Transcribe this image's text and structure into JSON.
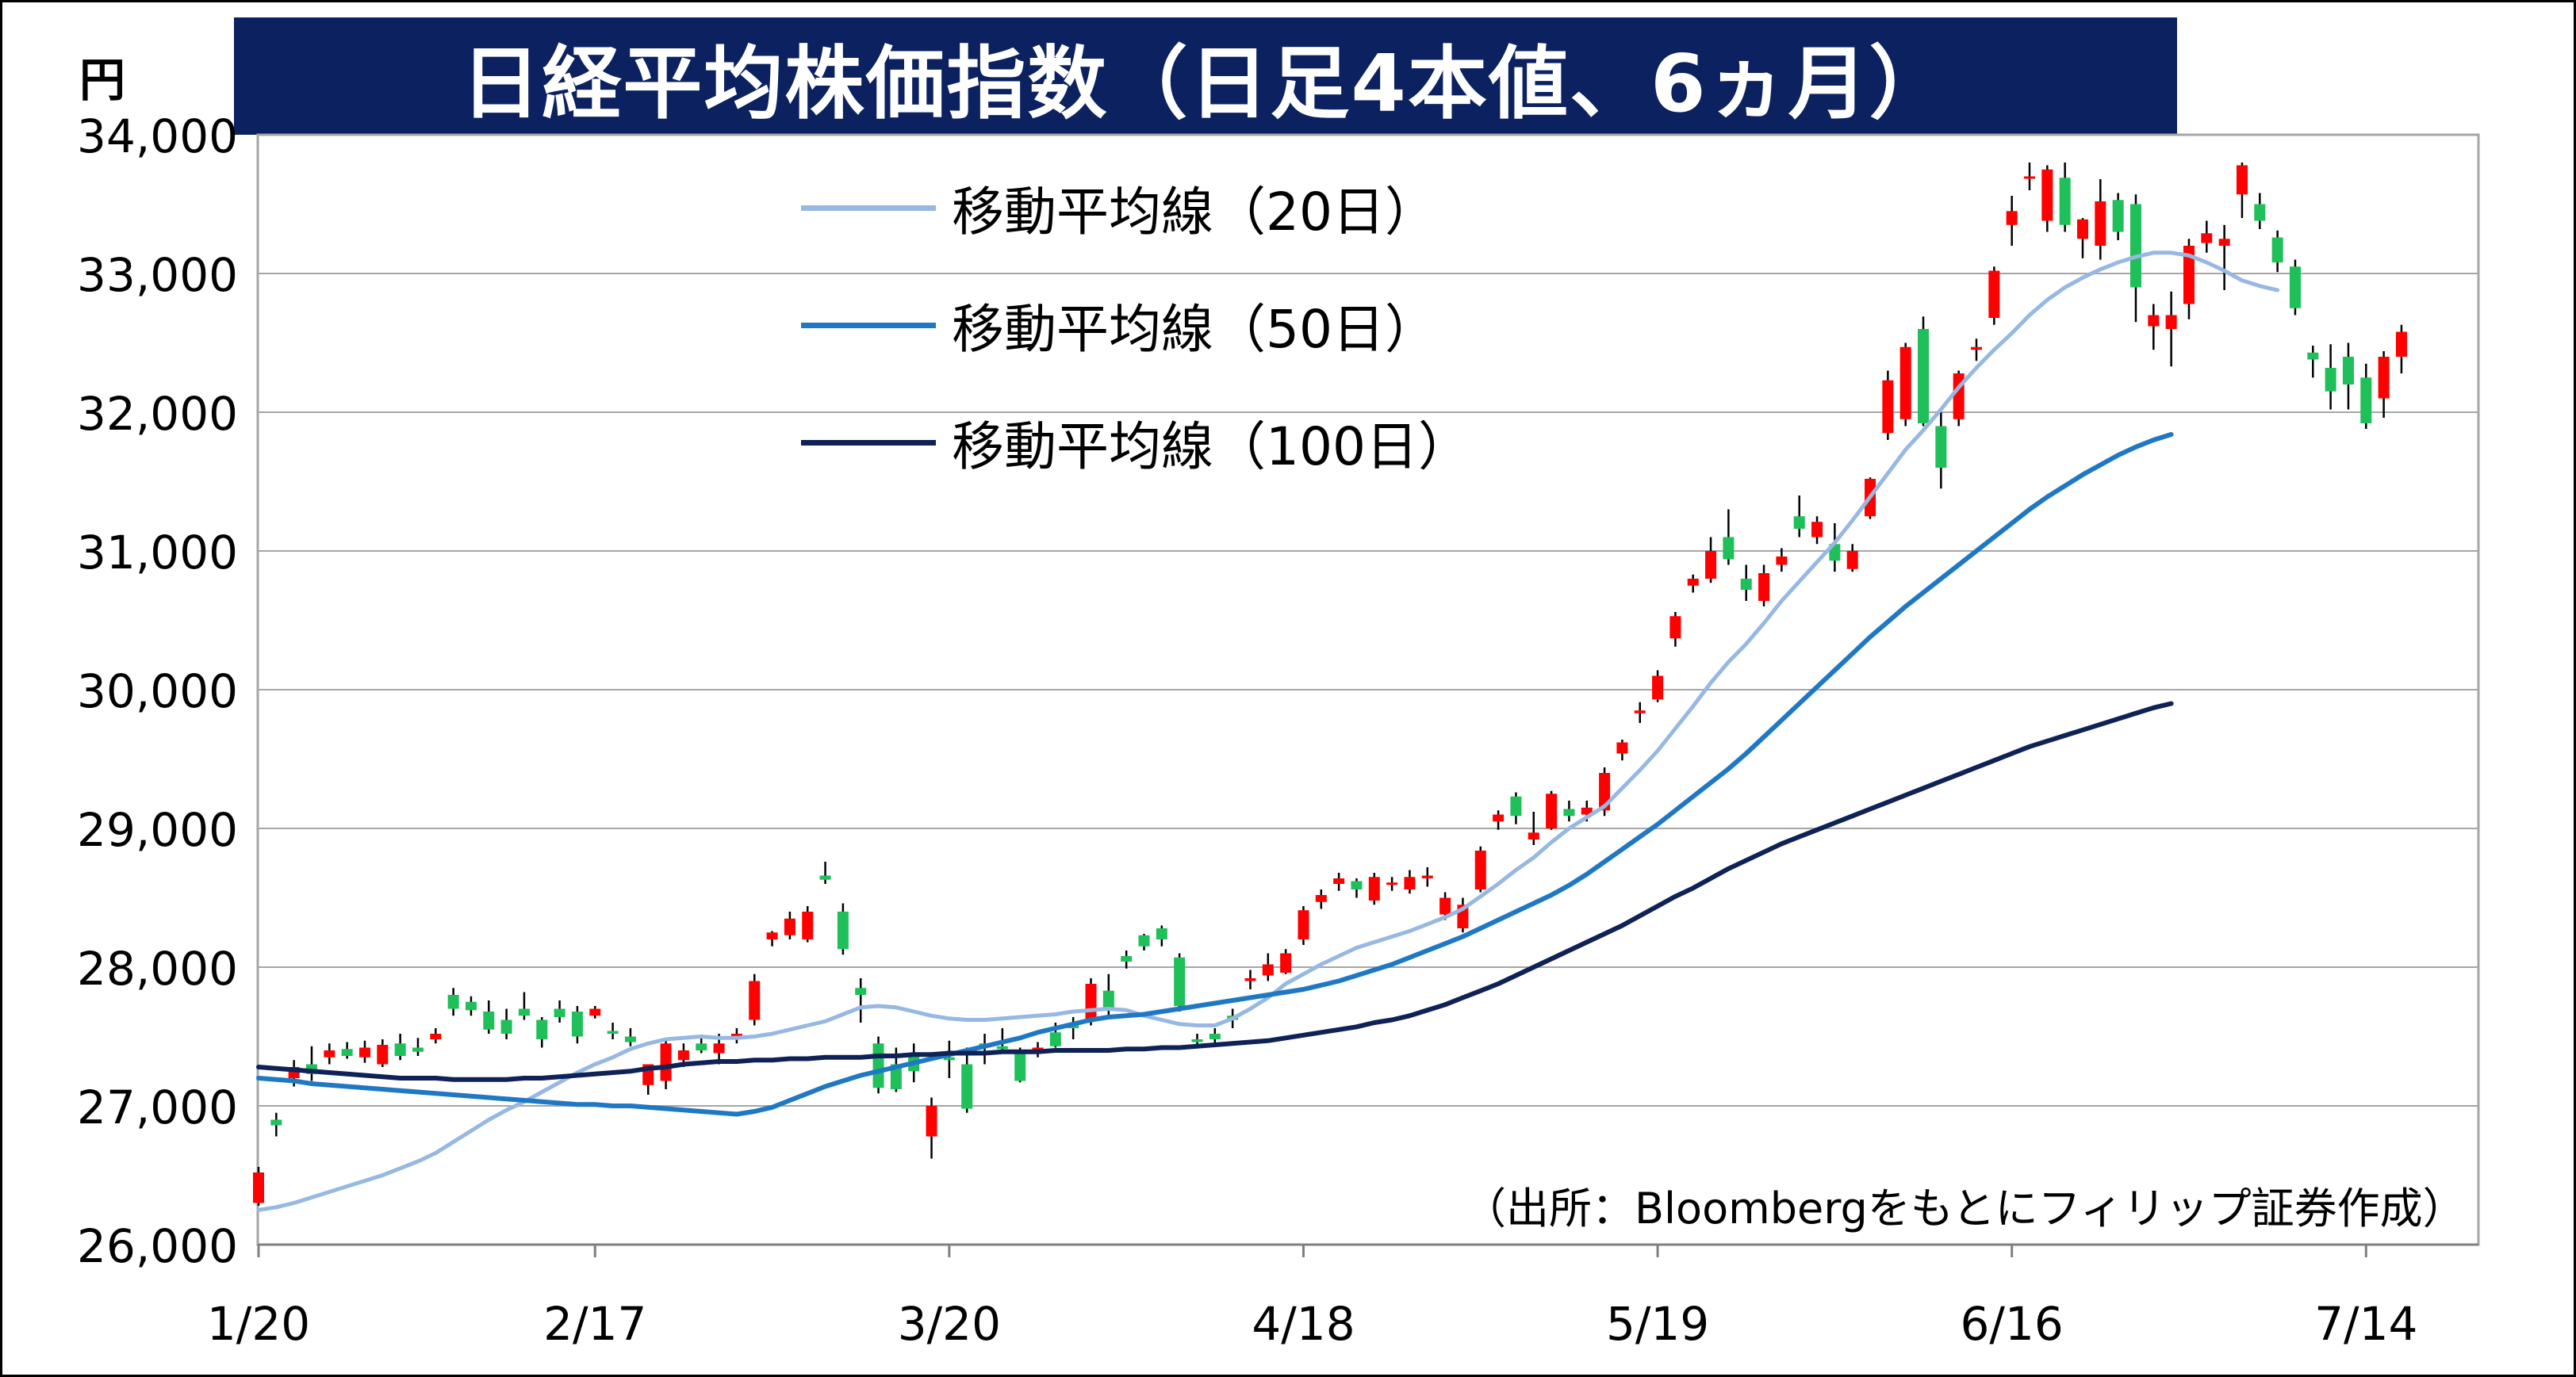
{
  "title": "日経平均株価指数（日足4本値、6ヵ月）",
  "y_unit": "円",
  "source": "（出所：Bloombergをもとにフィリップ証券作成）",
  "colors": {
    "title_bg": "#0b2160",
    "up_candle": "#ff0000",
    "down_candle": "#1fbf5a",
    "ma20": "#96b8e2",
    "ma50": "#1f78c4",
    "ma100": "#0f2257"
  },
  "chart_data": {
    "type": "candlestick",
    "ylim": [
      26000,
      34000
    ],
    "y_ticks": [
      "26,000",
      "27,000",
      "28,000",
      "29,000",
      "30,000",
      "31,000",
      "32,000",
      "33,000",
      "34,000"
    ],
    "y_tick_values": [
      26000,
      27000,
      28000,
      29000,
      30000,
      31000,
      32000,
      33000,
      34000
    ],
    "x_tick_labels": [
      "1/20",
      "2/17",
      "3/20",
      "4/18",
      "5/19",
      "6/16",
      "7/14"
    ],
    "x_tick_index": [
      0,
      19,
      39,
      59,
      79,
      99,
      119
    ],
    "legend": [
      {
        "key": "ma20",
        "label": "移動平均線（20日）"
      },
      {
        "key": "ma50",
        "label": "移動平均線（50日）"
      },
      {
        "key": "ma100",
        "label": "移動平均線（100日）"
      }
    ],
    "candles": [
      [
        26300,
        26560,
        26280,
        26520
      ],
      [
        26900,
        26950,
        26780,
        26860
      ],
      [
        27200,
        27330,
        27140,
        27280
      ],
      [
        27300,
        27430,
        27180,
        27230
      ],
      [
        27350,
        27450,
        27300,
        27400
      ],
      [
        27410,
        27460,
        27340,
        27360
      ],
      [
        27350,
        27470,
        27310,
        27420
      ],
      [
        27300,
        27480,
        27280,
        27440
      ],
      [
        27450,
        27520,
        27330,
        27360
      ],
      [
        27420,
        27490,
        27360,
        27390
      ],
      [
        27480,
        27560,
        27450,
        27520
      ],
      [
        27800,
        27850,
        27650,
        27700
      ],
      [
        27750,
        27790,
        27650,
        27690
      ],
      [
        27680,
        27760,
        27520,
        27550
      ],
      [
        27620,
        27700,
        27480,
        27520
      ],
      [
        27700,
        27820,
        27620,
        27650
      ],
      [
        27620,
        27640,
        27420,
        27480
      ],
      [
        27700,
        27760,
        27600,
        27640
      ],
      [
        27680,
        27720,
        27450,
        27500
      ],
      [
        27650,
        27720,
        27630,
        27700
      ],
      [
        27540,
        27600,
        27480,
        27520
      ],
      [
        27500,
        27560,
        27430,
        27460
      ],
      [
        27150,
        27300,
        27080,
        27300
      ],
      [
        27180,
        27480,
        27120,
        27450
      ],
      [
        27330,
        27450,
        27280,
        27400
      ],
      [
        27450,
        27500,
        27380,
        27400
      ],
      [
        27380,
        27520,
        27300,
        27450
      ],
      [
        27490,
        27560,
        27450,
        27520
      ],
      [
        27620,
        27950,
        27580,
        27900
      ],
      [
        28200,
        28260,
        28150,
        28250
      ],
      [
        28230,
        28400,
        28200,
        28350
      ],
      [
        28200,
        28440,
        28180,
        28400
      ],
      [
        28660,
        28760,
        28600,
        28630
      ],
      [
        28400,
        28460,
        28090,
        28130
      ],
      [
        27850,
        27920,
        27600,
        27800
      ],
      [
        27450,
        27500,
        27090,
        27130
      ],
      [
        27300,
        27420,
        27100,
        27120
      ],
      [
        27380,
        27450,
        27170,
        27250
      ],
      [
        26780,
        27060,
        26620,
        27000
      ],
      [
        27350,
        27470,
        27200,
        27330
      ],
      [
        27300,
        27420,
        26950,
        26980
      ],
      [
        27450,
        27520,
        27300,
        27430
      ],
      [
        27430,
        27560,
        27380,
        27410
      ],
      [
        27380,
        27420,
        27170,
        27180
      ],
      [
        27400,
        27460,
        27350,
        27420
      ],
      [
        27530,
        27600,
        27420,
        27430
      ],
      [
        27580,
        27640,
        27480,
        27560
      ],
      [
        27620,
        27920,
        27580,
        27880
      ],
      [
        27830,
        27950,
        27650,
        27700
      ],
      [
        28080,
        28120,
        27990,
        28040
      ],
      [
        28230,
        28240,
        28120,
        28150
      ],
      [
        28280,
        28300,
        28150,
        28200
      ],
      [
        28070,
        28100,
        27680,
        27720
      ],
      [
        27480,
        27520,
        27420,
        27460
      ],
      [
        27520,
        27560,
        27450,
        27480
      ],
      [
        27650,
        27700,
        27560,
        27620
      ],
      [
        27900,
        27980,
        27840,
        27920
      ],
      [
        27940,
        28100,
        27900,
        28020
      ],
      [
        27960,
        28130,
        27950,
        28100
      ],
      [
        28200,
        28440,
        28160,
        28410
      ],
      [
        28470,
        28560,
        28420,
        28520
      ],
      [
        28600,
        28680,
        28550,
        28640
      ],
      [
        28620,
        28640,
        28500,
        28560
      ],
      [
        28480,
        28680,
        28450,
        28650
      ],
      [
        28600,
        28650,
        28550,
        28610
      ],
      [
        28560,
        28700,
        28530,
        28650
      ],
      [
        28640,
        28720,
        28580,
        28660
      ],
      [
        28380,
        28540,
        28340,
        28500
      ],
      [
        28280,
        28500,
        28250,
        28450
      ],
      [
        28560,
        28870,
        28540,
        28840
      ],
      [
        29050,
        29130,
        28990,
        29100
      ],
      [
        29230,
        29260,
        29030,
        29090
      ],
      [
        28920,
        29120,
        28880,
        28970
      ],
      [
        29000,
        29270,
        28990,
        29250
      ],
      [
        29140,
        29200,
        29050,
        29090
      ],
      [
        29100,
        29200,
        29050,
        29150
      ],
      [
        29130,
        29440,
        29090,
        29400
      ],
      [
        29540,
        29640,
        29490,
        29620
      ],
      [
        29830,
        29910,
        29760,
        29850
      ],
      [
        29930,
        30140,
        29910,
        30100
      ],
      [
        30370,
        30560,
        30310,
        30530
      ],
      [
        30750,
        30830,
        30700,
        30800
      ],
      [
        30800,
        31100,
        30770,
        31000
      ],
      [
        31100,
        31300,
        30900,
        30940
      ],
      [
        30800,
        30900,
        30640,
        30720
      ],
      [
        30640,
        30900,
        30600,
        30840
      ],
      [
        30900,
        31020,
        30850,
        30960
      ],
      [
        31250,
        31400,
        31100,
        31160
      ],
      [
        31100,
        31250,
        31050,
        31210
      ],
      [
        31050,
        31200,
        30850,
        30930
      ],
      [
        30870,
        31050,
        30850,
        31000
      ],
      [
        31250,
        31530,
        31230,
        31520
      ],
      [
        31850,
        32300,
        31800,
        32230
      ],
      [
        31950,
        32500,
        31900,
        32470
      ],
      [
        32600,
        32690,
        31900,
        31920
      ],
      [
        31900,
        32000,
        31450,
        31600
      ],
      [
        31950,
        32300,
        31900,
        32280
      ],
      [
        32450,
        32530,
        32370,
        32470
      ],
      [
        32680,
        33050,
        32630,
        33020
      ],
      [
        33350,
        33560,
        33200,
        33450
      ],
      [
        33700,
        33800,
        33600,
        33700
      ],
      [
        33380,
        33780,
        33300,
        33750
      ],
      [
        33690,
        33800,
        33300,
        33350
      ],
      [
        33250,
        33400,
        33110,
        33390
      ],
      [
        33200,
        33680,
        33100,
        33520
      ],
      [
        33530,
        33580,
        33240,
        33300
      ],
      [
        33500,
        33570,
        32650,
        32900
      ],
      [
        32620,
        32780,
        32450,
        32700
      ],
      [
        32600,
        32870,
        32330,
        32700
      ],
      [
        32780,
        33250,
        32670,
        33200
      ],
      [
        33220,
        33380,
        33150,
        33290
      ],
      [
        33200,
        33350,
        32880,
        33250
      ],
      [
        33570,
        33800,
        33400,
        33780
      ],
      [
        33500,
        33580,
        33320,
        33380
      ],
      [
        33260,
        33310,
        33010,
        33080
      ],
      [
        33050,
        33100,
        32700,
        32750
      ],
      [
        32430,
        32480,
        32250,
        32380
      ],
      [
        32320,
        32490,
        32020,
        32150
      ],
      [
        32400,
        32500,
        32020,
        32200
      ],
      [
        32250,
        32350,
        31880,
        31920
      ],
      [
        32100,
        32440,
        31960,
        32400
      ],
      [
        32400,
        32630,
        32280,
        32580
      ]
    ],
    "series": [
      {
        "key": "ma20",
        "values": [
          26250,
          26270,
          26300,
          26340,
          26380,
          26420,
          26460,
          26500,
          26550,
          26600,
          26660,
          26740,
          26820,
          26900,
          26970,
          27030,
          27100,
          27170,
          27240,
          27300,
          27350,
          27410,
          27450,
          27480,
          27490,
          27500,
          27490,
          27490,
          27500,
          27520,
          27550,
          27580,
          27610,
          27660,
          27710,
          27720,
          27710,
          27680,
          27650,
          27630,
          27620,
          27620,
          27630,
          27640,
          27650,
          27660,
          27680,
          27690,
          27700,
          27690,
          27650,
          27620,
          27590,
          27580,
          27580,
          27630,
          27700,
          27780,
          27880,
          27950,
          28020,
          28080,
          28140,
          28180,
          28220,
          28260,
          28310,
          28360,
          28420,
          28510,
          28600,
          28700,
          28790,
          28900,
          29000,
          29080,
          29160,
          29290,
          29420,
          29560,
          29720,
          29880,
          30050,
          30200,
          30330,
          30480,
          30640,
          30780,
          30920,
          31060,
          31220,
          31390,
          31560,
          31730,
          31870,
          32020,
          32180,
          32320,
          32450,
          32570,
          32700,
          32810,
          32900,
          32970,
          33030,
          33080,
          33120,
          33150,
          33150,
          33130,
          33080,
          33020,
          32950,
          32910,
          32880
        ]
      },
      {
        "key": "ma50",
        "values": [
          27200,
          27190,
          27180,
          27160,
          27150,
          27140,
          27130,
          27120,
          27110,
          27100,
          27090,
          27080,
          27070,
          27060,
          27050,
          27040,
          27030,
          27020,
          27010,
          27010,
          27000,
          27000,
          26990,
          26980,
          26970,
          26960,
          26950,
          26940,
          26960,
          26990,
          27040,
          27090,
          27140,
          27180,
          27220,
          27250,
          27280,
          27310,
          27340,
          27370,
          27400,
          27430,
          27460,
          27490,
          27530,
          27560,
          27590,
          27620,
          27640,
          27650,
          27660,
          27680,
          27700,
          27720,
          27740,
          27760,
          27780,
          27800,
          27820,
          27840,
          27870,
          27900,
          27940,
          27980,
          28020,
          28070,
          28120,
          28170,
          28220,
          28280,
          28340,
          28400,
          28460,
          28520,
          28590,
          28670,
          28760,
          28850,
          28940,
          29030,
          29130,
          29230,
          29330,
          29430,
          29540,
          29660,
          29780,
          29900,
          30020,
          30140,
          30260,
          30380,
          30490,
          30600,
          30700,
          30800,
          30900,
          31000,
          31100,
          31200,
          31300,
          31390,
          31470,
          31550,
          31620,
          31690,
          31750,
          31800,
          31840
        ]
      },
      {
        "key": "ma100",
        "values": [
          27280,
          27270,
          27260,
          27250,
          27240,
          27230,
          27220,
          27210,
          27200,
          27200,
          27200,
          27190,
          27190,
          27190,
          27190,
          27200,
          27200,
          27210,
          27220,
          27230,
          27240,
          27250,
          27270,
          27280,
          27300,
          27310,
          27320,
          27320,
          27330,
          27330,
          27340,
          27340,
          27350,
          27350,
          27350,
          27360,
          27360,
          27370,
          27370,
          27380,
          27380,
          27380,
          27390,
          27390,
          27390,
          27400,
          27400,
          27400,
          27400,
          27410,
          27410,
          27420,
          27420,
          27430,
          27440,
          27450,
          27460,
          27470,
          27490,
          27510,
          27530,
          27550,
          27570,
          27600,
          27620,
          27650,
          27690,
          27730,
          27780,
          27830,
          27880,
          27940,
          28000,
          28060,
          28120,
          28180,
          28240,
          28300,
          28370,
          28440,
          28510,
          28570,
          28640,
          28710,
          28770,
          28830,
          28890,
          28940,
          28990,
          29040,
          29090,
          29140,
          29190,
          29240,
          29290,
          29340,
          29390,
          29440,
          29490,
          29540,
          29590,
          29630,
          29670,
          29710,
          29750,
          29790,
          29830,
          29870,
          29900
        ]
      }
    ]
  }
}
